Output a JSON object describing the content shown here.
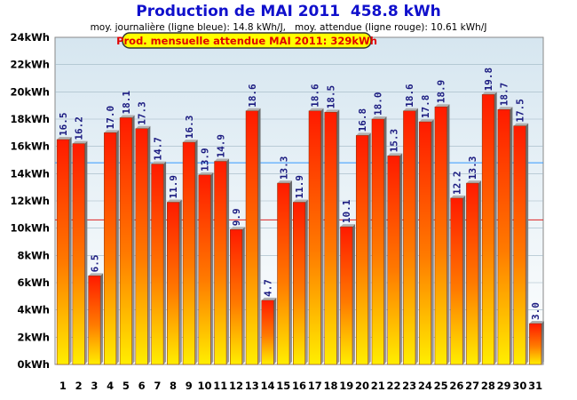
{
  "chart_data": {
    "type": "bar",
    "title": "Production de MAI 2011  458.8 kWh",
    "subtitle": "moy. journalière (ligne bleue): 14.8 kWh/J,   moy. attendue (ligne rouge): 10.61 kWh/J",
    "badge": "Prod. mensuelle attendue MAI 2011: 329kWh",
    "xlabel": "",
    "ylabel": "",
    "ylim": [
      0,
      24
    ],
    "yticks": [
      "0kWh",
      "2kWh",
      "4kWh",
      "6kWh",
      "8kWh",
      "10kWh",
      "12kWh",
      "14kWh",
      "16kWh",
      "18kWh",
      "20kWh",
      "22kWh",
      "24kWh"
    ],
    "categories": [
      "1",
      "2",
      "3",
      "4",
      "5",
      "6",
      "7",
      "8",
      "9",
      "10",
      "11",
      "12",
      "13",
      "14",
      "15",
      "16",
      "17",
      "18",
      "19",
      "20",
      "21",
      "22",
      "23",
      "24",
      "25",
      "26",
      "27",
      "28",
      "29",
      "30",
      "31"
    ],
    "values": [
      16.5,
      16.2,
      6.5,
      17.0,
      18.1,
      17.3,
      14.7,
      11.9,
      16.3,
      13.9,
      14.9,
      9.9,
      18.6,
      4.7,
      13.3,
      11.9,
      18.6,
      18.5,
      10.1,
      16.8,
      18.0,
      15.3,
      18.6,
      17.8,
      18.9,
      12.2,
      13.3,
      19.8,
      18.7,
      17.5,
      3.0
    ],
    "value_labels": [
      "16.5",
      "16.2",
      "6.5",
      "17.0",
      "18.1",
      "17.3",
      "14.7",
      "11.9",
      "16.3",
      "13.9",
      "14.9",
      "9.9",
      "18.6",
      "4.7",
      "13.3",
      "11.9",
      "18.6",
      "18.5",
      "10.1",
      "16.8",
      "18.0",
      "15.3",
      "18.6",
      "17.8",
      "18.9",
      "12.2",
      "13.3",
      "19.8",
      "18.7",
      "17.5",
      "3.0"
    ],
    "reference_lines": [
      {
        "value": 14.8,
        "color": "#3399ff"
      },
      {
        "value": 10.61,
        "color": "#dd2222"
      }
    ],
    "grid": true,
    "colors": {
      "title": "#1010cc",
      "bar_top": "#ff1a00",
      "bar_bottom": "#ffee00",
      "value_label": "#1a1a80",
      "badge_bg": "#ffff00",
      "badge_text": "#e00000",
      "plot_bg_top": "#d6e6f0",
      "plot_bg_bottom": "#ffffff"
    }
  }
}
